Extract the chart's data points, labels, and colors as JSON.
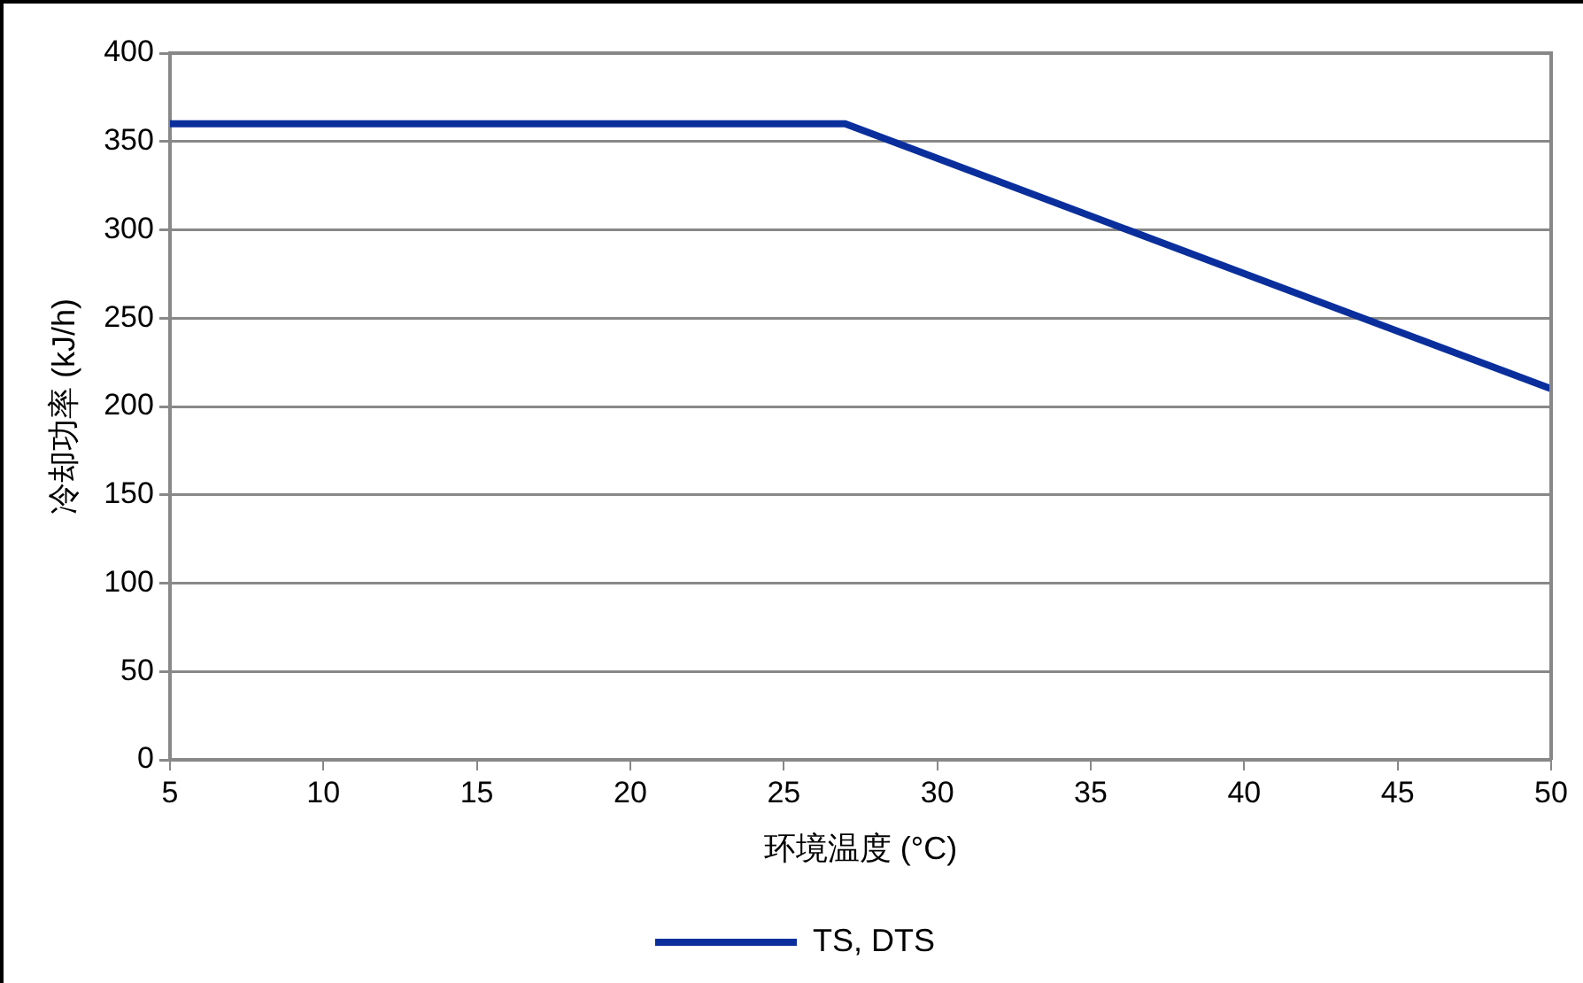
{
  "chart_data": {
    "type": "line",
    "xlabel": "环境温度 (°C)",
    "ylabel": "冷却功率 (kJ/h)",
    "x": [
      5,
      27,
      50
    ],
    "series": [
      {
        "name": "TS, DTS",
        "color": "#0a2f9c",
        "values": [
          360,
          360,
          210
        ]
      }
    ],
    "xlim": [
      5,
      50
    ],
    "xticks": [
      5,
      10,
      15,
      20,
      25,
      30,
      35,
      40,
      45,
      50
    ],
    "ylim": [
      0,
      400
    ],
    "yticks": [
      0,
      50,
      100,
      150,
      200,
      250,
      300,
      350,
      400
    ],
    "grid": "y",
    "legend": "bottom",
    "marker": "none",
    "line_style": "solid"
  }
}
